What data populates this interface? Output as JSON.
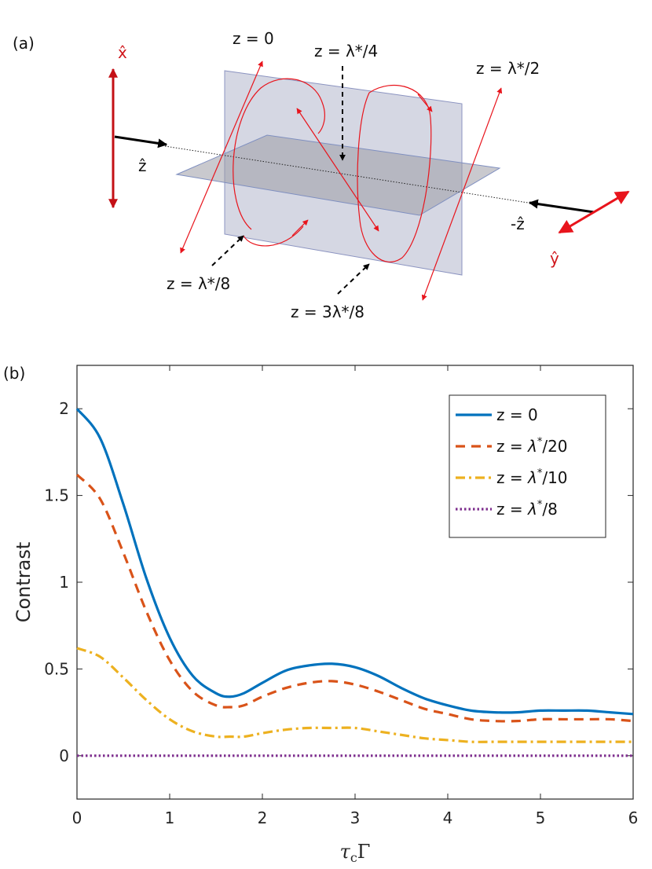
{
  "panel_a": {
    "label": "(a)",
    "axes": {
      "x_hat": "x̂",
      "y_hat": "ŷ",
      "z_hat": "ẑ",
      "neg_z_hat": "-ẑ"
    },
    "annotations": {
      "z0": "z = 0",
      "z_quarter": "z = λ*/4",
      "z_half": "z = λ*/2",
      "z_eighth": "z = λ*/8",
      "z_three_eighth": "z = 3λ*/8"
    },
    "colors": {
      "field": "#e8141c",
      "plane": "#c7c9d9",
      "arrow": "#000000"
    }
  },
  "panel_b": {
    "label": "(b)"
  },
  "chart_data": {
    "type": "line",
    "title": "",
    "xlabel": "τcΓ",
    "xlabel_main": "τ",
    "xlabel_sub": "c",
    "xlabel_end": "Γ",
    "ylabel": "Contrast",
    "xlim": [
      0,
      6
    ],
    "ylim": [
      -0.25,
      2.25
    ],
    "xticks": [
      0,
      1,
      2,
      3,
      4,
      5,
      6
    ],
    "xtick_labels": [
      "0",
      "1",
      "2",
      "3",
      "4",
      "5",
      "6"
    ],
    "yticks": [
      0,
      0.5,
      1,
      1.5,
      2
    ],
    "ytick_labels": [
      "0",
      "0.5",
      "1",
      "1.5",
      "2"
    ],
    "legend_position": "top-right",
    "x": [
      0,
      0.25,
      0.5,
      0.75,
      1.0,
      1.25,
      1.5,
      1.65,
      1.8,
      2.0,
      2.25,
      2.5,
      2.75,
      3.0,
      3.25,
      3.5,
      3.75,
      4.0,
      4.25,
      4.5,
      4.75,
      5.0,
      5.25,
      5.5,
      5.75,
      6.0
    ],
    "series": [
      {
        "name": "z = 0",
        "legend_lead": "z = ",
        "legend_sym": "0",
        "legend_sup": "",
        "legend_tail": "",
        "color": "#0072bd",
        "dash": "solid",
        "values": [
          2.0,
          1.83,
          1.45,
          1.02,
          0.68,
          0.46,
          0.36,
          0.34,
          0.36,
          0.42,
          0.49,
          0.52,
          0.53,
          0.51,
          0.46,
          0.39,
          0.33,
          0.29,
          0.26,
          0.25,
          0.25,
          0.26,
          0.26,
          0.26,
          0.25,
          0.24
        ]
      },
      {
        "name": "z = λ*/20",
        "legend_lead": "z = ",
        "legend_sym": "λ",
        "legend_sup": "*",
        "legend_tail": "/20",
        "color": "#d95319",
        "dash": "dashed",
        "values": [
          1.62,
          1.48,
          1.17,
          0.83,
          0.55,
          0.37,
          0.29,
          0.28,
          0.29,
          0.34,
          0.39,
          0.42,
          0.43,
          0.41,
          0.37,
          0.32,
          0.27,
          0.24,
          0.21,
          0.2,
          0.2,
          0.21,
          0.21,
          0.21,
          0.21,
          0.2
        ]
      },
      {
        "name": "z = λ*/10",
        "legend_lead": "z = ",
        "legend_sym": "λ",
        "legend_sup": "*",
        "legend_tail": "/10",
        "color": "#edb120",
        "dash": "dashdot",
        "values": [
          0.62,
          0.57,
          0.45,
          0.32,
          0.21,
          0.14,
          0.11,
          0.11,
          0.11,
          0.13,
          0.15,
          0.16,
          0.16,
          0.16,
          0.14,
          0.12,
          0.1,
          0.09,
          0.08,
          0.08,
          0.08,
          0.08,
          0.08,
          0.08,
          0.08,
          0.08
        ]
      },
      {
        "name": "z = λ*/8",
        "legend_lead": "z = ",
        "legend_sym": "λ",
        "legend_sup": "*",
        "legend_tail": "/8",
        "color": "#7e2f8e",
        "dash": "dotted",
        "values": [
          0,
          0,
          0,
          0,
          0,
          0,
          0,
          0,
          0,
          0,
          0,
          0,
          0,
          0,
          0,
          0,
          0,
          0,
          0,
          0,
          0,
          0,
          0,
          0,
          0,
          0
        ]
      }
    ]
  }
}
